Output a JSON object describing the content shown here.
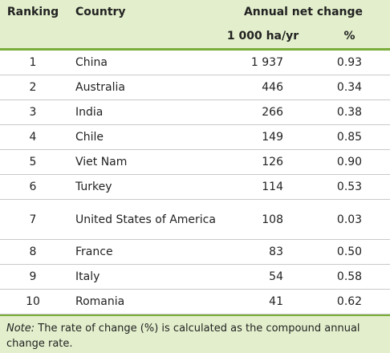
{
  "header": {
    "ranking": "Ranking",
    "country": "Country",
    "annual_net_change": "Annual net change",
    "unit_area": "1 000 ha/yr",
    "unit_pct": "%"
  },
  "rows": [
    [
      "1",
      "China",
      "1 937",
      "0.93"
    ],
    [
      "2",
      "Australia",
      "446",
      "0.34"
    ],
    [
      "3",
      "India",
      "266",
      "0.38"
    ],
    [
      "4",
      "Chile",
      "149",
      "0.85"
    ],
    [
      "5",
      "Viet Nam",
      "126",
      "0.90"
    ],
    [
      "6",
      "Turkey",
      "114",
      "0.53"
    ],
    [
      "7",
      "United States of America",
      "108",
      "0.03"
    ],
    [
      "8",
      "France",
      "83",
      "0.50"
    ],
    [
      "9",
      "Italy",
      "54",
      "0.58"
    ],
    [
      "10",
      "Romania",
      "41",
      "0.62"
    ]
  ],
  "note": {
    "label": "Note:",
    "text": "The rate of change (%) is calculated as the compound annual change rate."
  }
}
